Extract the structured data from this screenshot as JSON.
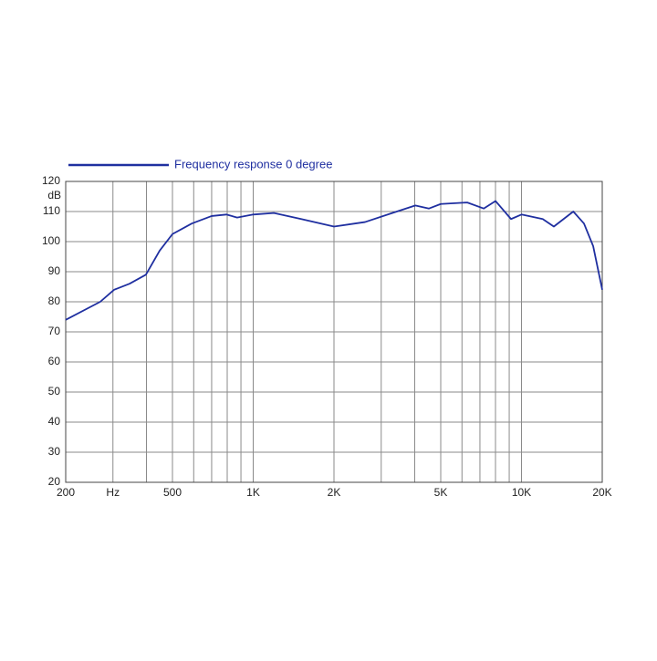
{
  "chart_data": {
    "type": "line",
    "legend": "Frequency response 0 degree",
    "y_label": "dB",
    "xscale": "log",
    "grid": true,
    "xlim": [
      200,
      20000
    ],
    "ylim": [
      20,
      120
    ],
    "xticks": [
      200,
      {
        "value": 300,
        "label": "Hz"
      },
      500,
      {
        "value": 1000,
        "label": "1K"
      },
      {
        "value": 2000,
        "label": "2K"
      },
      {
        "value": 5000,
        "label": "5K"
      },
      {
        "value": 10000,
        "label": "10K"
      },
      {
        "value": 20000,
        "label": "20K"
      }
    ],
    "xgrid_minor": [
      400,
      600,
      700,
      800,
      900,
      3000,
      4000,
      6000,
      7000,
      8000,
      9000
    ],
    "yticks": [
      20,
      30,
      40,
      50,
      60,
      70,
      80,
      90,
      100,
      110,
      120
    ],
    "series": [
      {
        "name": "Frequency response 0 degree",
        "color": "#1f2fa0",
        "x": [
          200,
          269,
          303,
          346,
          398,
          448,
          500,
          590,
          700,
          794,
          871,
          1000,
          1194,
          1510,
          2000,
          2610,
          3300,
          4020,
          4520,
          5000,
          6280,
          7230,
          8000,
          9140,
          10000,
          12000,
          13200,
          15600,
          17100,
          18500,
          20000
        ],
        "values": [
          74,
          80,
          84,
          86,
          89,
          97,
          102.5,
          106,
          108.5,
          109,
          108,
          109,
          109.5,
          107.5,
          105,
          106.5,
          109.5,
          112,
          111,
          112.5,
          113,
          111,
          113.5,
          107.5,
          109,
          107.5,
          105,
          110,
          106,
          98.5,
          84
        ]
      }
    ]
  }
}
